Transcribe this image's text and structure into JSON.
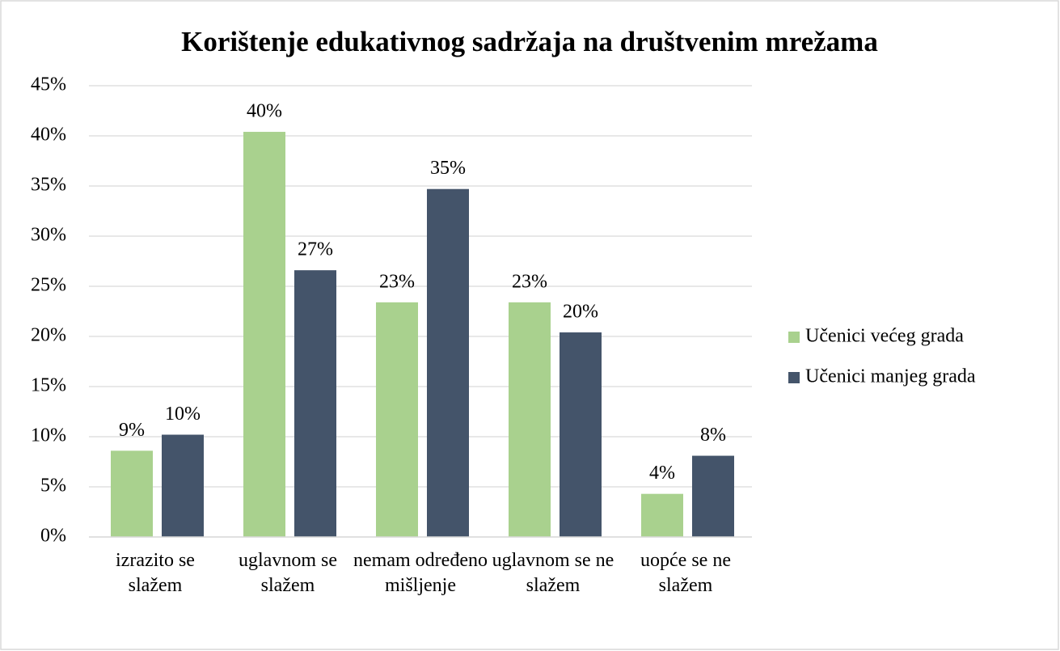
{
  "chart_data": {
    "type": "bar",
    "title": "Korištenje edukativnog sadržaja na društvenim mrežama",
    "categories": [
      "izrazito se slažem",
      "uglavnom se slažem",
      "nemam određeno mišljenje",
      "uglavnom se ne slažem",
      "uopće se ne slažem"
    ],
    "series": [
      {
        "name": "Učenici većeg grada",
        "color": "#a9d18e",
        "values": [
          8.6,
          40.4,
          23.4,
          23.4,
          4.3
        ],
        "value_labels": [
          "9%",
          "40%",
          "23%",
          "23%",
          "4%"
        ]
      },
      {
        "name": "Učenici manjeg grada",
        "color": "#44546a",
        "values": [
          10.2,
          26.6,
          34.7,
          20.4,
          8.1
        ],
        "value_labels": [
          "10%",
          "27%",
          "35%",
          "20%",
          "8%"
        ]
      }
    ],
    "ylim": [
      0,
      45
    ],
    "yticks": [
      {
        "value": 0,
        "label": "0%"
      },
      {
        "value": 5,
        "label": "5%"
      },
      {
        "value": 10,
        "label": "10%"
      },
      {
        "value": 15,
        "label": "15%"
      },
      {
        "value": 20,
        "label": "20%"
      },
      {
        "value": 25,
        "label": "25%"
      },
      {
        "value": 30,
        "label": "30%"
      },
      {
        "value": 35,
        "label": "35%"
      },
      {
        "value": 40,
        "label": "40%"
      },
      {
        "value": 45,
        "label": "45%"
      }
    ],
    "grid": true,
    "legend": "right"
  }
}
